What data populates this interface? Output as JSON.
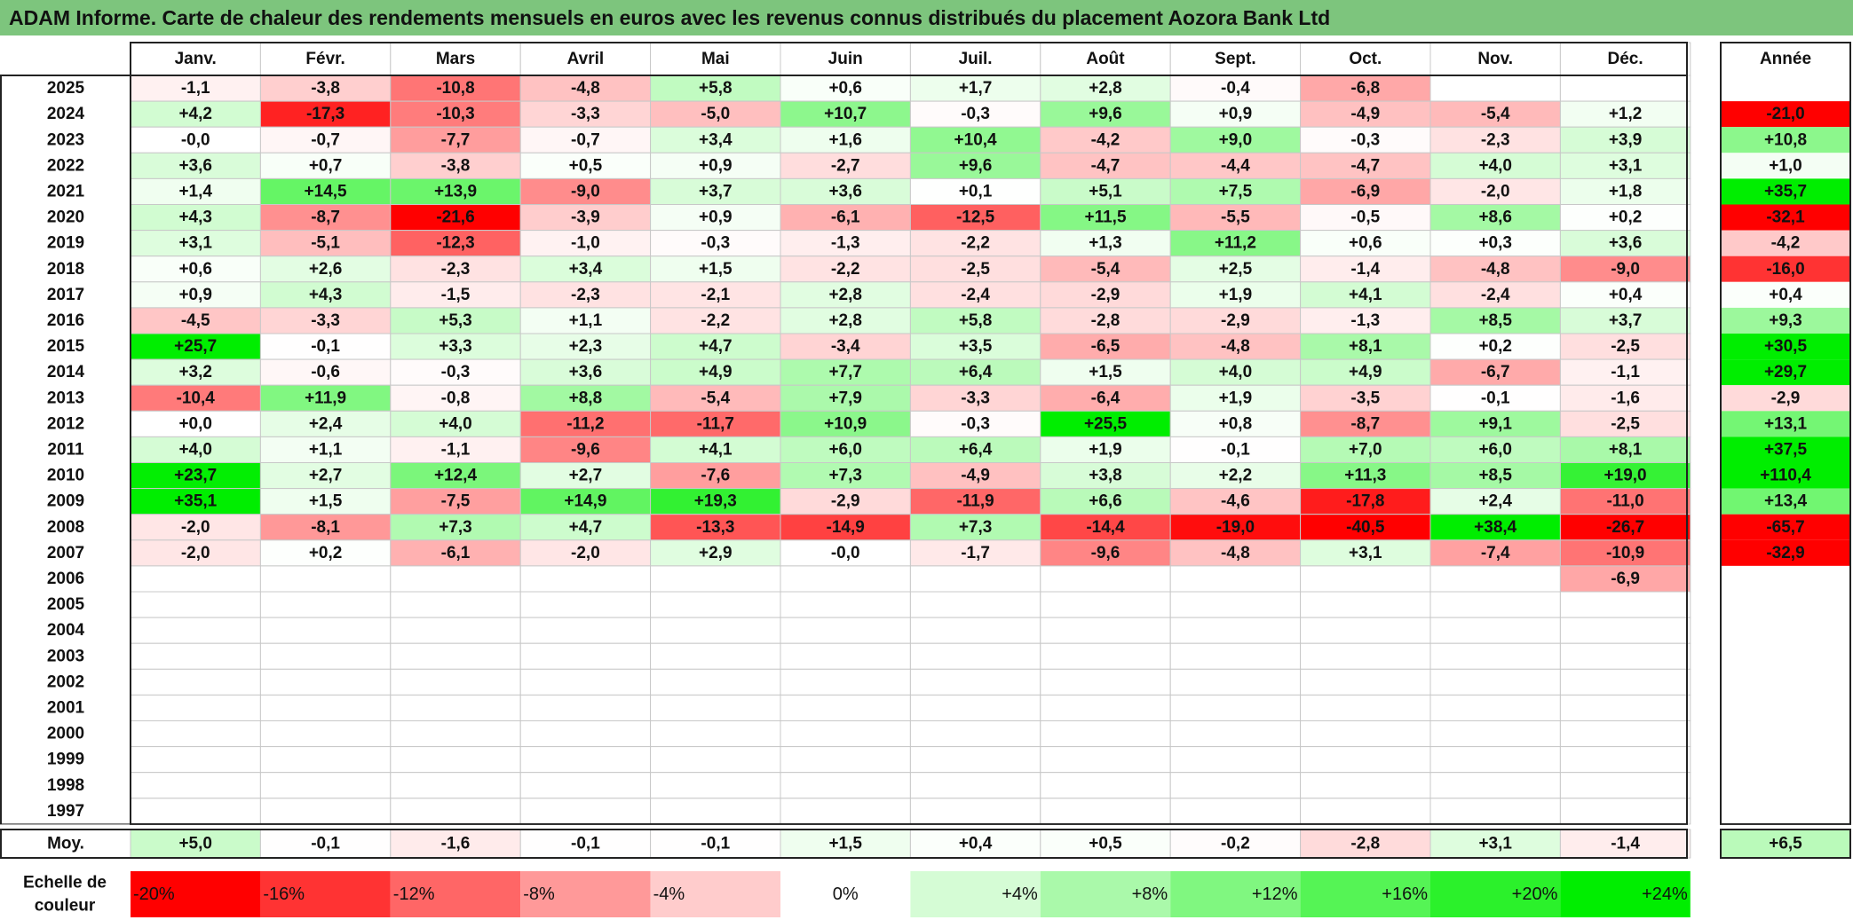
{
  "title": "ADAM Informe. Carte de chaleur des rendements mensuels en euros avec les revenus connus distribués du placement Aozora Bank Ltd",
  "colors": {
    "title_bg": "#7dc57d",
    "max_red": "#ff0000",
    "neutral": "#ffffff",
    "max_green": "#00ee00"
  },
  "chart_data": {
    "type": "heatmap",
    "unit": "%",
    "months": [
      "Janv.",
      "Févr.",
      "Mars",
      "Avril",
      "Mai",
      "Juin",
      "Juil.",
      "Août",
      "Sept.",
      "Oct.",
      "Nov.",
      "Déc."
    ],
    "year_header": "Année",
    "rows": [
      {
        "year": "2025",
        "values": [
          "-1,1",
          "-3,8",
          "-10,8",
          "-4,8",
          "+5,8",
          "+0,6",
          "+1,7",
          "+2,8",
          "-0,4",
          "-6,8",
          "",
          ""
        ],
        "annual": ""
      },
      {
        "year": "2024",
        "values": [
          "+4,2",
          "-17,3",
          "-10,3",
          "-3,3",
          "-5,0",
          "+10,7",
          "-0,3",
          "+9,6",
          "+0,9",
          "-4,9",
          "-5,4",
          "+1,2"
        ],
        "annual": "-21,0"
      },
      {
        "year": "2023",
        "values": [
          "-0,0",
          "-0,7",
          "-7,7",
          "-0,7",
          "+3,4",
          "+1,6",
          "+10,4",
          "-4,2",
          "+9,0",
          "-0,3",
          "-2,3",
          "+3,9"
        ],
        "annual": "+10,8"
      },
      {
        "year": "2022",
        "values": [
          "+3,6",
          "+0,7",
          "-3,8",
          "+0,5",
          "+0,9",
          "-2,7",
          "+9,6",
          "-4,7",
          "-4,4",
          "-4,7",
          "+4,0",
          "+3,1"
        ],
        "annual": "+1,0"
      },
      {
        "year": "2021",
        "values": [
          "+1,4",
          "+14,5",
          "+13,9",
          "-9,0",
          "+3,7",
          "+3,6",
          "+0,1",
          "+5,1",
          "+7,5",
          "-6,9",
          "-2,0",
          "+1,8"
        ],
        "annual": "+35,7"
      },
      {
        "year": "2020",
        "values": [
          "+4,3",
          "-8,7",
          "-21,6",
          "-3,9",
          "+0,9",
          "-6,1",
          "-12,5",
          "+11,5",
          "-5,5",
          "-0,5",
          "+8,6",
          "+0,2"
        ],
        "annual": "-32,1"
      },
      {
        "year": "2019",
        "values": [
          "+3,1",
          "-5,1",
          "-12,3",
          "-1,0",
          "-0,3",
          "-1,3",
          "-2,2",
          "+1,3",
          "+11,2",
          "+0,6",
          "+0,3",
          "+3,6"
        ],
        "annual": "-4,2"
      },
      {
        "year": "2018",
        "values": [
          "+0,6",
          "+2,6",
          "-2,3",
          "+3,4",
          "+1,5",
          "-2,2",
          "-2,5",
          "-5,4",
          "+2,5",
          "-1,4",
          "-4,8",
          "-9,0"
        ],
        "annual": "-16,0"
      },
      {
        "year": "2017",
        "values": [
          "+0,9",
          "+4,3",
          "-1,5",
          "-2,3",
          "-2,1",
          "+2,8",
          "-2,4",
          "-2,9",
          "+1,9",
          "+4,1",
          "-2,4",
          "+0,4"
        ],
        "annual": "+0,4"
      },
      {
        "year": "2016",
        "values": [
          "-4,5",
          "-3,3",
          "+5,3",
          "+1,1",
          "-2,2",
          "+2,8",
          "+5,8",
          "-2,8",
          "-2,9",
          "-1,3",
          "+8,5",
          "+3,7"
        ],
        "annual": "+9,3"
      },
      {
        "year": "2015",
        "values": [
          "+25,7",
          "-0,1",
          "+3,3",
          "+2,3",
          "+4,7",
          "-3,4",
          "+3,5",
          "-6,5",
          "-4,8",
          "+8,1",
          "+0,2",
          "-2,5"
        ],
        "annual": "+30,5"
      },
      {
        "year": "2014",
        "values": [
          "+3,2",
          "-0,6",
          "-0,3",
          "+3,6",
          "+4,9",
          "+7,7",
          "+6,4",
          "+1,5",
          "+4,0",
          "+4,9",
          "-6,7",
          "-1,1"
        ],
        "annual": "+29,7"
      },
      {
        "year": "2013",
        "values": [
          "-10,4",
          "+11,9",
          "-0,8",
          "+8,8",
          "-5,4",
          "+7,9",
          "-3,3",
          "-6,4",
          "+1,9",
          "-3,5",
          "-0,1",
          "-1,6"
        ],
        "annual": "-2,9"
      },
      {
        "year": "2012",
        "values": [
          "+0,0",
          "+2,4",
          "+4,0",
          "-11,2",
          "-11,7",
          "+10,9",
          "-0,3",
          "+25,5",
          "+0,8",
          "-8,7",
          "+9,1",
          "-2,5"
        ],
        "annual": "+13,1"
      },
      {
        "year": "2011",
        "values": [
          "+4,0",
          "+1,1",
          "-1,1",
          "-9,6",
          "+4,1",
          "+6,0",
          "+6,4",
          "+1,9",
          "-0,1",
          "+7,0",
          "+6,0",
          "+8,1"
        ],
        "annual": "+37,5"
      },
      {
        "year": "2010",
        "values": [
          "+23,7",
          "+2,7",
          "+12,4",
          "+2,7",
          "-7,6",
          "+7,3",
          "-4,9",
          "+3,8",
          "+2,2",
          "+11,3",
          "+8,5",
          "+19,0"
        ],
        "annual": "+110,4"
      },
      {
        "year": "2009",
        "values": [
          "+35,1",
          "+1,5",
          "-7,5",
          "+14,9",
          "+19,3",
          "-2,9",
          "-11,9",
          "+6,6",
          "-4,6",
          "-17,8",
          "+2,4",
          "-11,0"
        ],
        "annual": "+13,4"
      },
      {
        "year": "2008",
        "values": [
          "-2,0",
          "-8,1",
          "+7,3",
          "+4,7",
          "-13,3",
          "-14,9",
          "+7,3",
          "-14,4",
          "-19,0",
          "-40,5",
          "+38,4",
          "-26,7"
        ],
        "annual": "-65,7"
      },
      {
        "year": "2007",
        "values": [
          "-2,0",
          "+0,2",
          "-6,1",
          "-2,0",
          "+2,9",
          "-0,0",
          "-1,7",
          "-9,6",
          "-4,8",
          "+3,1",
          "-7,4",
          "-10,9"
        ],
        "annual": "-32,9"
      },
      {
        "year": "2006",
        "values": [
          "",
          "",
          "",
          "",
          "",
          "",
          "",
          "",
          "",
          "",
          "",
          "-6,9"
        ],
        "annual": ""
      },
      {
        "year": "2005",
        "values": [
          "",
          "",
          "",
          "",
          "",
          "",
          "",
          "",
          "",
          "",
          "",
          ""
        ],
        "annual": ""
      },
      {
        "year": "2004",
        "values": [
          "",
          "",
          "",
          "",
          "",
          "",
          "",
          "",
          "",
          "",
          "",
          ""
        ],
        "annual": ""
      },
      {
        "year": "2003",
        "values": [
          "",
          "",
          "",
          "",
          "",
          "",
          "",
          "",
          "",
          "",
          "",
          ""
        ],
        "annual": ""
      },
      {
        "year": "2002",
        "values": [
          "",
          "",
          "",
          "",
          "",
          "",
          "",
          "",
          "",
          "",
          "",
          ""
        ],
        "annual": ""
      },
      {
        "year": "2001",
        "values": [
          "",
          "",
          "",
          "",
          "",
          "",
          "",
          "",
          "",
          "",
          "",
          ""
        ],
        "annual": ""
      },
      {
        "year": "2000",
        "values": [
          "",
          "",
          "",
          "",
          "",
          "",
          "",
          "",
          "",
          "",
          "",
          ""
        ],
        "annual": ""
      },
      {
        "year": "1999",
        "values": [
          "",
          "",
          "",
          "",
          "",
          "",
          "",
          "",
          "",
          "",
          "",
          ""
        ],
        "annual": ""
      },
      {
        "year": "1998",
        "values": [
          "",
          "",
          "",
          "",
          "",
          "",
          "",
          "",
          "",
          "",
          "",
          ""
        ],
        "annual": ""
      },
      {
        "year": "1997",
        "values": [
          "",
          "",
          "",
          "",
          "",
          "",
          "",
          "",
          "",
          "",
          "",
          ""
        ],
        "annual": ""
      }
    ],
    "average": {
      "label": "Moy.",
      "values": [
        "+5,0",
        "-0,1",
        "-1,6",
        "-0,1",
        "-0,1",
        "+1,5",
        "+0,4",
        "+0,5",
        "-0,2",
        "-2,8",
        "+3,1",
        "-1,4"
      ],
      "annual": "+6,5"
    },
    "scale": {
      "label_line1": "Echelle de",
      "label_line2": "couleur",
      "steps": [
        "-20%",
        "-16%",
        "-12%",
        "-8%",
        "-4%",
        "0%",
        "+4%",
        "+8%",
        "+12%",
        "+16%",
        "+20%",
        "+24%"
      ],
      "values": [
        -20,
        -16,
        -12,
        -8,
        -4,
        0,
        4,
        8,
        12,
        16,
        20,
        24
      ]
    }
  }
}
